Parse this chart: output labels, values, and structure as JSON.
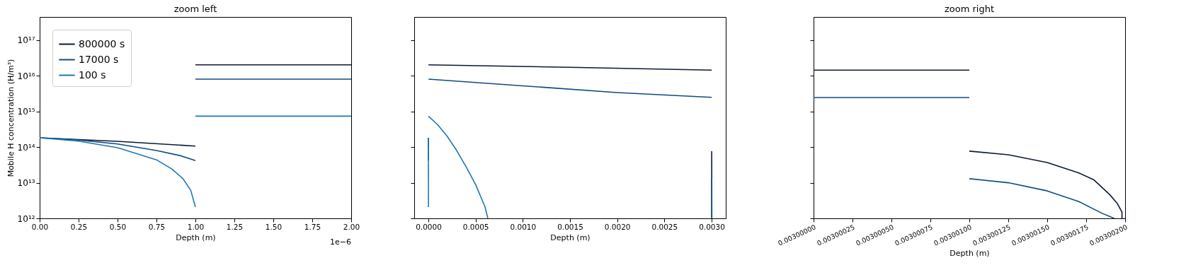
{
  "chart_data": [
    {
      "type": "line",
      "title": "zoom left",
      "xlabel": "Depth (m)",
      "ylabel": "Mobile H concentration (H/m³)",
      "log": "y",
      "grid": false,
      "legend": "top left",
      "xlim": [
        0,
        2
      ],
      "xticks": [
        {
          "value": 0,
          "label": "0.00"
        },
        0.25,
        {
          "value": 0.5,
          "label": "0.50"
        },
        0.75,
        {
          "value": 1,
          "label": "1.00"
        },
        1.25,
        {
          "value": 1.5,
          "label": "1.50"
        },
        1.75,
        {
          "value": 2,
          "label": "2.00"
        }
      ],
      "ylim": [
        1000000000000.0,
        4.5e+17
      ],
      "yticks": [
        {
          "value": 1000000000000.0,
          "label": "10¹²"
        },
        {
          "value": 10000000000000.0,
          "label": "10¹³"
        },
        {
          "value": 100000000000000.0,
          "label": "10¹⁴"
        },
        {
          "value": 1000000000000000.0,
          "label": "10¹⁵"
        },
        {
          "value": 1e+16,
          "label": "10¹⁶"
        },
        {
          "value": 1e+17,
          "label": "10¹⁷"
        }
      ],
      "annotations": [
        "1e−6"
      ],
      "series": [
        {
          "name": "800000 s",
          "color": "#0b1a33",
          "x": [
            0,
            0.5,
            1,
            null,
            1,
            2
          ],
          "values": [
            183000000000000.0,
            145000000000000.0,
            107000000000000.0,
            null,
            2.04e+16,
            2.04e+16
          ]
        },
        {
          "name": "17000 s",
          "color": "#0f4c81",
          "x": [
            0,
            0.25,
            0.5,
            0.75,
            0.9,
            1,
            null,
            1,
            2
          ],
          "values": [
            183000000000000.0,
            158000000000000.0,
            122000000000000.0,
            80000000000000.0,
            58000000000000.0,
            42000000000000.0,
            null,
            8100000000000000.0,
            8100000000000000.0
          ]
        },
        {
          "name": "100 s",
          "color": "#1f77b4",
          "x": [
            0,
            0.25,
            0.5,
            0.75,
            0.85,
            0.92,
            0.97,
            1,
            null,
            1,
            2
          ],
          "values": [
            183000000000000.0,
            147000000000000.0,
            96000000000000.0,
            44000000000000.0,
            24000000000000.0,
            13000000000000.0,
            6100000000000.0,
            2070000000000.0,
            null,
            740000000000000.0,
            740000000000000.0
          ]
        }
      ]
    },
    {
      "type": "line",
      "xlabel": "Depth (m)",
      "log": "y",
      "grid": false,
      "tick_labels": "x",
      "xlim": [
        -0.00015,
        0.00315
      ],
      "xticks": [
        {
          "value": 0,
          "label": "0.0000"
        },
        {
          "value": 0.0005,
          "label": "0.0005"
        },
        {
          "value": 0.001,
          "label": "0.0010"
        },
        {
          "value": 0.0015,
          "label": "0.0015"
        },
        {
          "value": 0.002,
          "label": "0.0020"
        },
        {
          "value": 0.0025,
          "label": "0.0025"
        },
        {
          "value": 0.003,
          "label": "0.0030"
        }
      ],
      "ylim": [
        1000000000000.0,
        4.5e+17
      ],
      "yticks": [
        {
          "value": 1000000000000.0,
          "label": null
        },
        {
          "value": 10000000000000.0,
          "label": null
        },
        {
          "value": 100000000000000.0,
          "label": null
        },
        {
          "value": 1000000000000000.0,
          "label": null
        },
        {
          "value": 1e+16,
          "label": null
        },
        {
          "value": 1e+17,
          "label": null
        }
      ],
      "series": [
        {
          "color": "#0b1a33",
          "x": [
            0,
            1e-06,
            null,
            1e-06,
            0.0015,
            0.003001,
            null,
            0.003001,
            0.0030019,
            0.00300198
          ],
          "values": [
            183000000000000.0,
            107000000000000.0,
            null,
            2.04e+16,
            1.74e+16,
            1.45e+16,
            null,
            77000000000000.0,
            4700000000000.0,
            1050000000000.0
          ]
        },
        {
          "color": "#0f4c81",
          "x": [
            0,
            1e-06,
            null,
            1e-06,
            0.001,
            0.002,
            0.003001,
            null,
            0.003001,
            0.0030017,
            0.00300193
          ],
          "values": [
            183000000000000.0,
            42000000000000.0,
            null,
            8100000000000000.0,
            5250000000000000.0,
            3400000000000000.0,
            2500000000000000.0,
            null,
            13000000000000.0,
            3000000000000.0,
            1000000000000.0
          ]
        },
        {
          "color": "#1f77b4",
          "x": [
            0,
            1e-06,
            null,
            1e-06,
            0.0001,
            0.0002,
            0.0003,
            0.0004,
            0.0005,
            0.0006,
            0.00063
          ],
          "values": [
            183000000000000.0,
            2070000000000.0,
            null,
            740000000000000.0,
            420000000000000.0,
            200000000000000.0,
            80000000000000.0,
            28000000000000.0,
            8900000000000.0,
            2100000000000.0,
            1000000000000.0
          ]
        }
      ]
    },
    {
      "type": "line",
      "title": "zoom right",
      "xlabel": "Depth (m)",
      "log": "y",
      "grid": false,
      "tick_labels": "x",
      "xlim": [
        0.003,
        0.003002
      ],
      "xticks": [
        {
          "value": 0.003,
          "label": "0.00300000"
        },
        {
          "value": 0.00300025,
          "label": "0.00300025"
        },
        {
          "value": 0.0030005,
          "label": "0.00300050"
        },
        {
          "value": 0.00300075,
          "label": "0.00300075"
        },
        {
          "value": 0.003001,
          "label": "0.00300100"
        },
        {
          "value": 0.00300125,
          "label": "0.00300125"
        },
        {
          "value": 0.0030015,
          "label": "0.00300150"
        },
        {
          "value": 0.00300175,
          "label": "0.00300175"
        },
        {
          "value": 0.003002,
          "label": "0.00300200"
        }
      ],
      "ylim": [
        1000000000000.0,
        4.5e+17
      ],
      "yticks": [
        {
          "value": 1000000000000.0,
          "label": null
        },
        {
          "value": 10000000000000.0,
          "label": null
        },
        {
          "value": 100000000000000.0,
          "label": null
        },
        {
          "value": 1000000000000000.0,
          "label": null
        },
        {
          "value": 1e+16,
          "label": null
        },
        {
          "value": 1e+17,
          "label": null
        }
      ],
      "series": [
        {
          "color": "#0b1a33",
          "x": [
            0.003,
            0.003001,
            null,
            0.003001,
            0.00300125,
            0.0030015,
            0.0030017,
            0.0030018,
            0.0030019,
            0.00300195,
            0.00300198,
            0.00300198
          ],
          "values": [
            1.45e+16,
            1.45e+16,
            null,
            77000000000000.0,
            61000000000000.0,
            37000000000000.0,
            19000000000000.0,
            12000000000000.0,
            4700000000000.0,
            2600000000000.0,
            1500000000000.0,
            1000000000000.0
          ]
        },
        {
          "color": "#0f4c81",
          "x": [
            0.003,
            0.003001,
            null,
            0.003001,
            0.00300125,
            0.0030015,
            0.0030017,
            0.00300185,
            0.00300193
          ],
          "values": [
            2470000000000000.0,
            2470000000000000.0,
            null,
            13000000000000.0,
            10000000000000.0,
            5900000000000.0,
            3000000000000.0,
            1400000000000.0,
            1000000000000.0
          ]
        }
      ]
    }
  ]
}
